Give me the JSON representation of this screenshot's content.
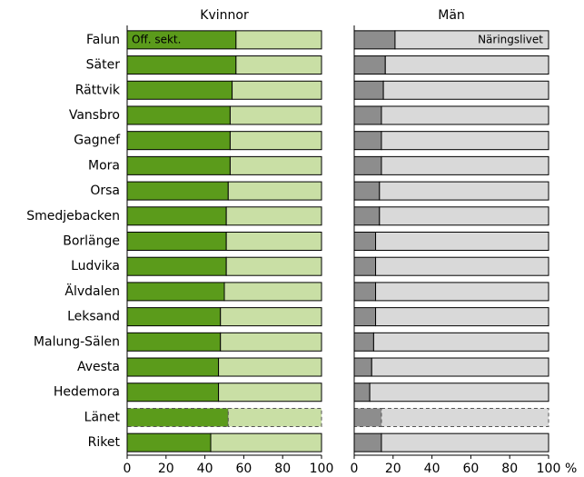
{
  "chart_data": {
    "type": "stacked_barh",
    "categories": [
      "Falun",
      "Säter",
      "Rättvik",
      "Vansbro",
      "Gagnef",
      "Mora",
      "Orsa",
      "Smedjebacken",
      "Borlänge",
      "Ludvika",
      "Älvdalen",
      "Leksand",
      "Malung-Sälen",
      "Avesta",
      "Hedemora",
      "Länet",
      "Riket"
    ],
    "dashed_category": "Länet",
    "xlim": [
      0,
      100
    ],
    "xticks": [
      0,
      20,
      40,
      60,
      80,
      100
    ],
    "xlabel": "%",
    "panels": [
      {
        "title": "Kvinnor",
        "series": [
          {
            "name": "Off. sekt.",
            "color": "#5b9b1b",
            "values": [
              56,
              56,
              54,
              53,
              53,
              53,
              52,
              51,
              51,
              51,
              50,
              48,
              48,
              47,
              47,
              52,
              43
            ]
          },
          {
            "color": "#c9dfa5",
            "values": [
              44,
              44,
              46,
              47,
              47,
              47,
              48,
              49,
              49,
              49,
              50,
              52,
              52,
              53,
              53,
              48,
              57
            ]
          }
        ]
      },
      {
        "title": "Män",
        "series": [
          {
            "color": "#8d8d8d",
            "values": [
              21,
              16,
              15,
              14,
              14,
              14,
              13,
              13,
              11,
              11,
              11,
              11,
              10,
              9,
              8,
              14,
              14
            ]
          },
          {
            "name": "Näringslivet",
            "color": "#d9d9d9",
            "values": [
              79,
              84,
              85,
              86,
              86,
              86,
              87,
              87,
              89,
              89,
              89,
              89,
              90,
              91,
              92,
              86,
              86
            ]
          }
        ]
      }
    ]
  }
}
